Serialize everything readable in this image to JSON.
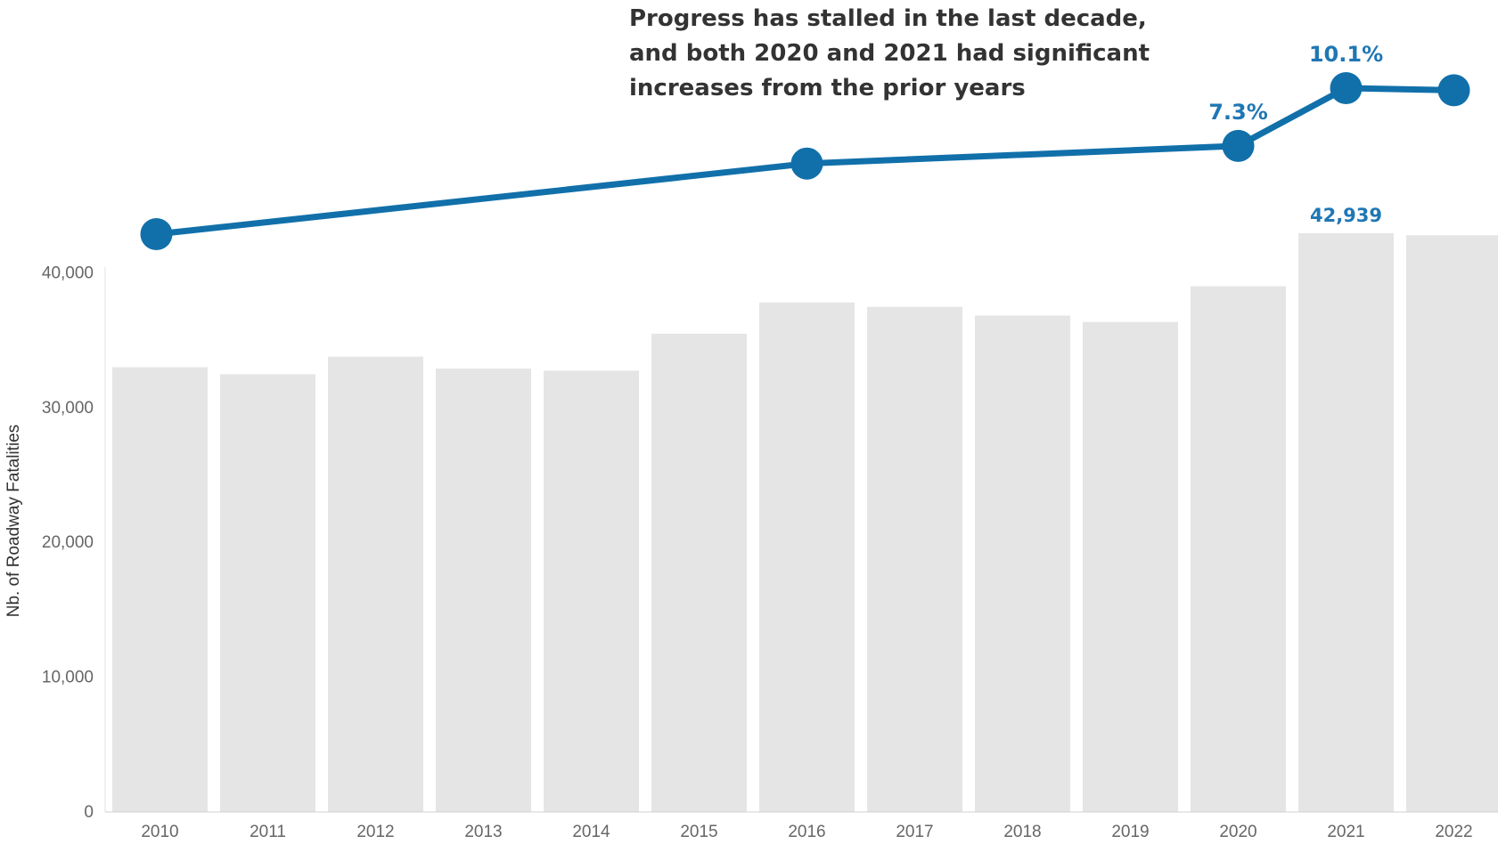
{
  "chart_data": {
    "type": "bar",
    "annotation_lines": [
      "Progress has stalled in the last decade,",
      "and both 2020 and 2021 had significant",
      "increases from the prior years"
    ],
    "ylabel": "Nb.  of  Roadway  Fatalities",
    "xlabel": "",
    "ylim": [
      0,
      42939
    ],
    "yticks": [
      0,
      10000,
      20000,
      30000,
      40000
    ],
    "ytick_labels": [
      "0",
      "10,000",
      "20,000",
      "30,000",
      "40,000"
    ],
    "categories": [
      "2010",
      "2011",
      "2012",
      "2013",
      "2014",
      "2015",
      "2016",
      "2017",
      "2018",
      "2019",
      "2020",
      "2021",
      "2022"
    ],
    "values": [
      32999,
      32479,
      33782,
      32893,
      32744,
      35484,
      37806,
      37473,
      36835,
      36355,
      39007,
      42939,
      42795
    ],
    "bar_labels": [
      {
        "category": "2021",
        "text": "42,939"
      }
    ],
    "trend_line": {
      "points": [
        {
          "x": "2010",
          "y": 32999
        },
        {
          "x": "2016",
          "y": 37806
        },
        {
          "x": "2020",
          "y": 39007
        },
        {
          "x": "2021",
          "y": 42939
        },
        {
          "x": "2022",
          "y": 42795
        }
      ],
      "labels": [
        {
          "x": "2020",
          "text": "7.3%"
        },
        {
          "x": "2021",
          "text": "10.1%"
        }
      ]
    },
    "colors": {
      "bar": "#e5e5e5",
      "line": "#1170aa",
      "label": "#1f77b4",
      "axis_text": "#666666",
      "annotation": "#333333"
    },
    "grid": false,
    "legend": "none"
  }
}
